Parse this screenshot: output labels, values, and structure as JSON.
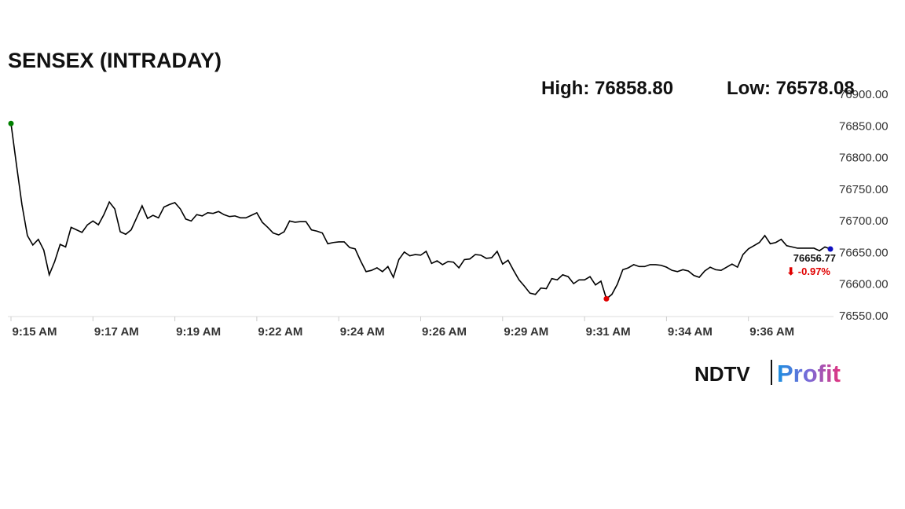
{
  "chart_data": {
    "type": "line",
    "title": "SENSEX (INTRADAY)",
    "high_text": "High: 76858.80",
    "low_text": "Low: 76578.08",
    "last_value_label": "76656.77",
    "change_label": "⬇ -0.97%",
    "brand": {
      "left": "NDTV",
      "right": "Profit"
    },
    "color": "#000000",
    "start_color": "#008000",
    "low_color": "#e00000",
    "end_color": "#1010c0",
    "change_color": "#e00000",
    "ylim": [
      76550,
      76900
    ],
    "yticks": [
      {
        "value": 76550,
        "label": "76550.00"
      },
      {
        "value": 76600,
        "label": "76600.00"
      },
      {
        "value": 76650,
        "label": "76650.00"
      },
      {
        "value": 76700,
        "label": "76700.00"
      },
      {
        "value": 76750,
        "label": "76750.00"
      },
      {
        "value": 76800,
        "label": "76800.00"
      },
      {
        "value": 76850,
        "label": "76850.00"
      },
      {
        "value": 76900,
        "label": "76900.00"
      }
    ],
    "categories": [
      "9:15 AM",
      null,
      null,
      null,
      null,
      null,
      null,
      null,
      null,
      null,
      null,
      null,
      null,
      null,
      null,
      "9:17 AM",
      null,
      null,
      null,
      null,
      null,
      null,
      null,
      null,
      null,
      null,
      null,
      null,
      null,
      null,
      "9:19 AM",
      null,
      null,
      null,
      null,
      null,
      null,
      null,
      null,
      null,
      null,
      null,
      null,
      null,
      null,
      "9:22 AM",
      null,
      null,
      null,
      null,
      null,
      null,
      null,
      null,
      null,
      null,
      null,
      null,
      null,
      null,
      "9:24 AM",
      null,
      null,
      null,
      null,
      null,
      null,
      null,
      null,
      null,
      null,
      null,
      null,
      null,
      null,
      "9:26 AM",
      null,
      null,
      null,
      null,
      null,
      null,
      null,
      null,
      null,
      null,
      null,
      null,
      null,
      null,
      "9:29 AM",
      null,
      null,
      null,
      null,
      null,
      null,
      null,
      null,
      null,
      null,
      null,
      null,
      null,
      null,
      "9:31 AM",
      null,
      null,
      null,
      null,
      null,
      null,
      null,
      null,
      null,
      null,
      null,
      null,
      null,
      null,
      "9:34 AM",
      null,
      null,
      null,
      null,
      null,
      null,
      null,
      null,
      null,
      null,
      null,
      null,
      null,
      null,
      "9:36 AM",
      null,
      null,
      null,
      null,
      null,
      null,
      null,
      null,
      null,
      null,
      null,
      null,
      null,
      null,
      null
    ],
    "values": [
      76855,
      76790,
      76727,
      76678,
      76663,
      76672,
      76655,
      76616,
      76637,
      76664,
      76660,
      76691,
      76687,
      76683,
      76695,
      76701,
      76695,
      76711,
      76731,
      76720,
      76684,
      76680,
      76687,
      76706,
      76725,
      76705,
      76710,
      76706,
      76723,
      76727,
      76730,
      76720,
      76704,
      76701,
      76711,
      76709,
      76714,
      76713,
      76716,
      76711,
      76708,
      76709,
      76706,
      76706,
      76710,
      76714,
      76699,
      76691,
      76682,
      76679,
      76684,
      76701,
      76699,
      76700,
      76700,
      76687,
      76685,
      76682,
      76665,
      76667,
      76668,
      76668,
      76659,
      76657,
      76638,
      76621,
      76623,
      76627,
      76621,
      76629,
      76612,
      76640,
      76652,
      76646,
      76648,
      76647,
      76653,
      76634,
      76638,
      76632,
      76637,
      76636,
      76627,
      76640,
      76641,
      76648,
      76647,
      76642,
      76643,
      76653,
      76633,
      76639,
      76623,
      76608,
      76598,
      76587,
      76585,
      76595,
      76594,
      76610,
      76608,
      76616,
      76613,
      76602,
      76608,
      76608,
      76613,
      76600,
      76606,
      76578.08,
      76585,
      76601,
      76624,
      76627,
      76632,
      76629,
      76629,
      76632,
      76632,
      76631,
      76628,
      76623,
      76621,
      76624,
      76622,
      76615,
      76612,
      76622,
      76628,
      76624,
      76623,
      76628,
      76633,
      76628,
      76648,
      76657,
      76662,
      76667,
      76678,
      76665,
      76667,
      76672,
      76662,
      76660,
      76658,
      76658,
      76658,
      76658,
      76654,
      76660,
      76656.77
    ]
  }
}
